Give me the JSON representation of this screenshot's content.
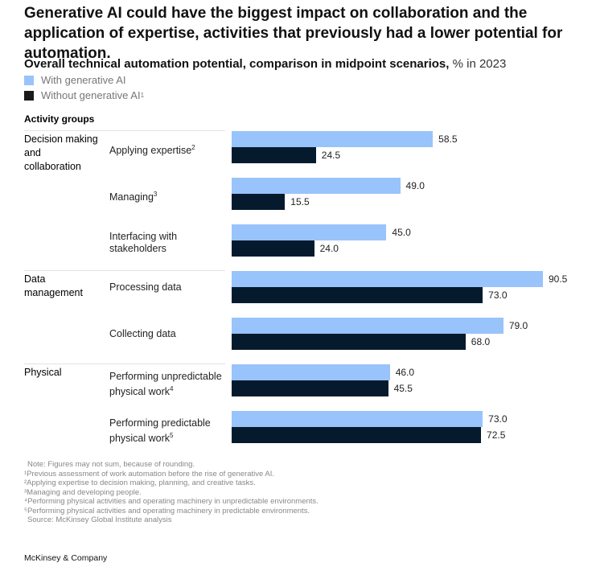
{
  "headline": "Generative AI could have the biggest impact on collaboration and the application of expertise, activities that previously had a lower potential for automation.",
  "chart_data": {
    "type": "bar",
    "orientation": "horizontal",
    "title": "Overall technical automation potential, comparison in midpoint scenarios,",
    "unit": "% in 2023",
    "legend": [
      {
        "name": "With generative AI",
        "color": "#99c3fb"
      },
      {
        "name": "Without generative AI",
        "sup": "1",
        "color": "#061a2e"
      }
    ],
    "legend_placement": "top-left",
    "row_header": "Activity groups",
    "grid": false,
    "xlim": [
      0,
      100
    ],
    "groups": [
      {
        "name": "Decision making and collaboration",
        "activities": [
          {
            "label": "Applying expertise",
            "sup": "2",
            "with": 58.5,
            "without": 24.5
          },
          {
            "label": "Managing",
            "sup": "3",
            "with": 49.0,
            "without": 15.5
          },
          {
            "label": "Interfacing with stakeholders",
            "sup": "",
            "with": 45.0,
            "without": 24.0
          }
        ]
      },
      {
        "name": "Data management",
        "activities": [
          {
            "label": "Processing data",
            "sup": "",
            "with": 90.5,
            "without": 73.0
          },
          {
            "label": "Collecting data",
            "sup": "",
            "with": 79.0,
            "without": 68.0
          }
        ]
      },
      {
        "name": "Physical",
        "activities": [
          {
            "label": "Performing unpredictable physical work",
            "sup": "4",
            "with": 46.0,
            "without": 45.5
          },
          {
            "label": "Performing predictable physical work",
            "sup": "5",
            "with": 73.0,
            "without": 72.5
          }
        ]
      }
    ]
  },
  "notes": [
    "Note: Figures may not sum, because of rounding.",
    "¹Previous assessment of work automation before the rise of generative AI.",
    "²Applying expertise to decision making, planning, and creative tasks.",
    "³Managing and developing people.",
    "⁴Performing physical activities and operating machinery in unpredictable environments.",
    "⁵Performing physical activities and operating machinery in predictable environments.",
    "Source: McKinsey Global Institute analysis"
  ],
  "brand": "McKinsey & Company"
}
